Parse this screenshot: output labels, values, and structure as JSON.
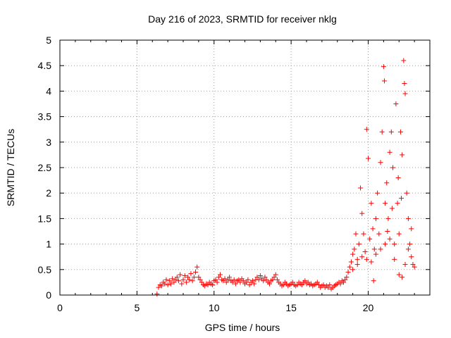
{
  "chart_data": {
    "type": "scatter",
    "title": "Day 216 of 2023, SRMTID for receiver nklg",
    "xlabel": "GPS time / hours",
    "ylabel": "SRMTID / TECUs",
    "xlim": [
      0,
      24
    ],
    "ylim": [
      0,
      5
    ],
    "xticks": [
      0,
      5,
      10,
      15,
      20
    ],
    "xtick_labels": [
      "0",
      "5",
      "10",
      "15",
      "20"
    ],
    "yticks": [
      0,
      0.5,
      1,
      1.5,
      2,
      2.5,
      3,
      3.5,
      4,
      4.5,
      5
    ],
    "ytick_labels": [
      "0",
      "0.5",
      "1",
      "1.5",
      "2",
      "2.5",
      "3",
      "3.5",
      "4",
      "4.5",
      "5"
    ],
    "grid": true,
    "marker": "+",
    "color": "#ff0000",
    "series": [
      {
        "name": "SRMTID",
        "points": [
          [
            6.3,
            0.02
          ],
          [
            6.4,
            0.15
          ],
          [
            6.5,
            0.2
          ],
          [
            6.6,
            0.18
          ],
          [
            6.7,
            0.25
          ],
          [
            6.8,
            0.22
          ],
          [
            6.9,
            0.3
          ],
          [
            7.0,
            0.2
          ],
          [
            7.1,
            0.28
          ],
          [
            7.2,
            0.22
          ],
          [
            7.3,
            0.32
          ],
          [
            7.4,
            0.25
          ],
          [
            7.5,
            0.3
          ],
          [
            7.6,
            0.35
          ],
          [
            7.7,
            0.28
          ],
          [
            7.8,
            0.4
          ],
          [
            7.9,
            0.22
          ],
          [
            8.0,
            0.3
          ],
          [
            8.1,
            0.38
          ],
          [
            8.2,
            0.25
          ],
          [
            8.3,
            0.35
          ],
          [
            8.4,
            0.3
          ],
          [
            8.5,
            0.42
          ],
          [
            8.6,
            0.28
          ],
          [
            8.7,
            0.35
          ],
          [
            8.8,
            0.45
          ],
          [
            8.9,
            0.55
          ],
          [
            9.0,
            0.35
          ],
          [
            9.1,
            0.3
          ],
          [
            9.2,
            0.25
          ],
          [
            9.3,
            0.2
          ],
          [
            9.4,
            0.18
          ],
          [
            9.5,
            0.22
          ],
          [
            9.6,
            0.2
          ],
          [
            9.7,
            0.25
          ],
          [
            9.8,
            0.22
          ],
          [
            9.9,
            0.2
          ],
          [
            10.0,
            0.28
          ],
          [
            10.1,
            0.3
          ],
          [
            10.2,
            0.25
          ],
          [
            10.3,
            0.35
          ],
          [
            10.4,
            0.4
          ],
          [
            10.5,
            0.3
          ],
          [
            10.6,
            0.28
          ],
          [
            10.7,
            0.32
          ],
          [
            10.8,
            0.25
          ],
          [
            10.9,
            0.3
          ],
          [
            11.0,
            0.35
          ],
          [
            11.1,
            0.28
          ],
          [
            11.2,
            0.25
          ],
          [
            11.3,
            0.3
          ],
          [
            11.4,
            0.22
          ],
          [
            11.5,
            0.28
          ],
          [
            11.6,
            0.3
          ],
          [
            11.7,
            0.25
          ],
          [
            11.8,
            0.32
          ],
          [
            11.9,
            0.28
          ],
          [
            12.0,
            0.22
          ],
          [
            12.1,
            0.25
          ],
          [
            12.2,
            0.3
          ],
          [
            12.3,
            0.2
          ],
          [
            12.4,
            0.25
          ],
          [
            12.5,
            0.28
          ],
          [
            12.6,
            0.22
          ],
          [
            12.7,
            0.3
          ],
          [
            12.8,
            0.35
          ],
          [
            12.9,
            0.3
          ],
          [
            13.0,
            0.38
          ],
          [
            13.1,
            0.32
          ],
          [
            13.2,
            0.28
          ],
          [
            13.3,
            0.35
          ],
          [
            13.4,
            0.3
          ],
          [
            13.5,
            0.25
          ],
          [
            13.6,
            0.22
          ],
          [
            13.7,
            0.28
          ],
          [
            13.8,
            0.3
          ],
          [
            13.9,
            0.35
          ],
          [
            14.0,
            0.4
          ],
          [
            14.1,
            0.3
          ],
          [
            14.2,
            0.25
          ],
          [
            14.3,
            0.22
          ],
          [
            14.4,
            0.18
          ],
          [
            14.5,
            0.2
          ],
          [
            14.6,
            0.25
          ],
          [
            14.7,
            0.22
          ],
          [
            14.8,
            0.18
          ],
          [
            14.9,
            0.2
          ],
          [
            15.0,
            0.22
          ],
          [
            15.1,
            0.25
          ],
          [
            15.2,
            0.2
          ],
          [
            15.3,
            0.18
          ],
          [
            15.4,
            0.2
          ],
          [
            15.5,
            0.25
          ],
          [
            15.6,
            0.22
          ],
          [
            15.7,
            0.2
          ],
          [
            15.8,
            0.25
          ],
          [
            15.9,
            0.28
          ],
          [
            16.0,
            0.22
          ],
          [
            16.1,
            0.25
          ],
          [
            16.2,
            0.2
          ],
          [
            16.3,
            0.22
          ],
          [
            16.4,
            0.18
          ],
          [
            16.5,
            0.2
          ],
          [
            16.6,
            0.22
          ],
          [
            16.7,
            0.25
          ],
          [
            16.8,
            0.2
          ],
          [
            16.9,
            0.15
          ],
          [
            17.0,
            0.18
          ],
          [
            17.1,
            0.2
          ],
          [
            17.2,
            0.15
          ],
          [
            17.3,
            0.18
          ],
          [
            17.4,
            0.15
          ],
          [
            17.5,
            0.2
          ],
          [
            17.6,
            0.12
          ],
          [
            17.7,
            0.15
          ],
          [
            17.8,
            0.18
          ],
          [
            17.9,
            0.2
          ],
          [
            18.0,
            0.22
          ],
          [
            18.1,
            0.25
          ],
          [
            18.2,
            0.22
          ],
          [
            18.3,
            0.28
          ],
          [
            18.4,
            0.25
          ],
          [
            18.5,
            0.3
          ],
          [
            18.6,
            0.35
          ],
          [
            18.7,
            0.45
          ],
          [
            18.8,
            0.55
          ],
          [
            18.9,
            0.65
          ],
          [
            19.0,
            0.8
          ],
          [
            19.1,
            0.9
          ],
          [
            19.2,
            1.2
          ],
          [
            19.3,
            0.7
          ],
          [
            19.4,
            1.0
          ],
          [
            19.5,
            2.1
          ],
          [
            19.6,
            1.6
          ],
          [
            19.7,
            1.2
          ],
          [
            19.8,
            0.85
          ],
          [
            19.9,
            3.25
          ],
          [
            20.0,
            2.68
          ],
          [
            20.1,
            1.1
          ],
          [
            20.2,
            1.8
          ],
          [
            20.3,
            1.3
          ],
          [
            20.4,
            0.9
          ],
          [
            20.5,
            1.5
          ],
          [
            20.6,
            2.0
          ],
          [
            20.7,
            1.2
          ],
          [
            20.8,
            2.6
          ],
          [
            20.9,
            3.2
          ],
          [
            21.0,
            4.48
          ],
          [
            21.05,
            4.2
          ],
          [
            21.1,
            1.8
          ],
          [
            21.2,
            2.2
          ],
          [
            21.3,
            1.5
          ],
          [
            21.4,
            2.8
          ],
          [
            21.5,
            3.2
          ],
          [
            21.6,
            2.5
          ],
          [
            21.7,
            1.0
          ],
          [
            21.8,
            3.75
          ],
          [
            21.9,
            1.8
          ],
          [
            22.0,
            1.2
          ],
          [
            22.1,
            3.2
          ],
          [
            22.2,
            2.75
          ],
          [
            22.3,
            4.6
          ],
          [
            22.35,
            4.15
          ],
          [
            22.4,
            3.95
          ],
          [
            22.5,
            2.0
          ],
          [
            22.6,
            1.5
          ],
          [
            22.7,
            1.0
          ],
          [
            22.8,
            0.75
          ],
          [
            22.9,
            0.6
          ],
          [
            23.0,
            0.55
          ],
          [
            19.0,
            0.5
          ],
          [
            19.3,
            0.6
          ],
          [
            19.6,
            0.75
          ],
          [
            19.9,
            0.7
          ],
          [
            20.2,
            0.65
          ],
          [
            20.5,
            0.8
          ],
          [
            20.8,
            0.9
          ],
          [
            21.1,
            1.0
          ],
          [
            21.4,
            1.1
          ],
          [
            21.7,
            0.7
          ],
          [
            22.0,
            0.4
          ],
          [
            22.2,
            0.35
          ],
          [
            22.4,
            0.6
          ],
          [
            22.6,
            0.9
          ],
          [
            22.8,
            1.3
          ],
          [
            20.35,
            0.28
          ],
          [
            21.25,
            1.25
          ],
          [
            21.55,
            1.7
          ],
          [
            22.15,
            1.9
          ],
          [
            21.95,
            2.3
          ]
        ]
      }
    ]
  }
}
